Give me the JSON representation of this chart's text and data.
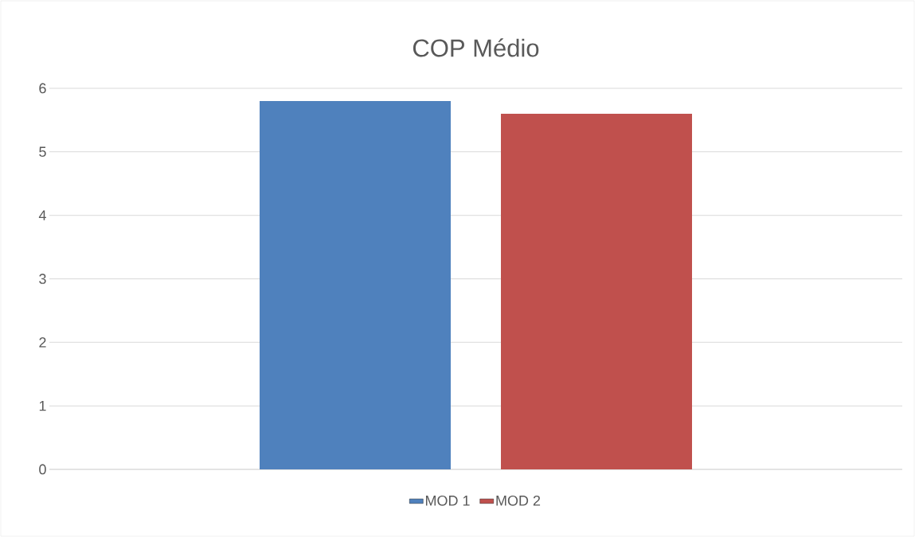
{
  "chart_data": {
    "type": "bar",
    "title": "COP Médio",
    "categories": [
      null
    ],
    "series": [
      {
        "name": "MOD 1",
        "color": "#4f81bd",
        "values": [
          5.8
        ]
      },
      {
        "name": "MOD 2",
        "color": "#c0504d",
        "values": [
          5.6
        ]
      }
    ],
    "ylim": [
      0,
      6
    ],
    "yticks": [
      0,
      1,
      2,
      3,
      4,
      5,
      6
    ],
    "grid": "y",
    "legend": "bottom"
  }
}
